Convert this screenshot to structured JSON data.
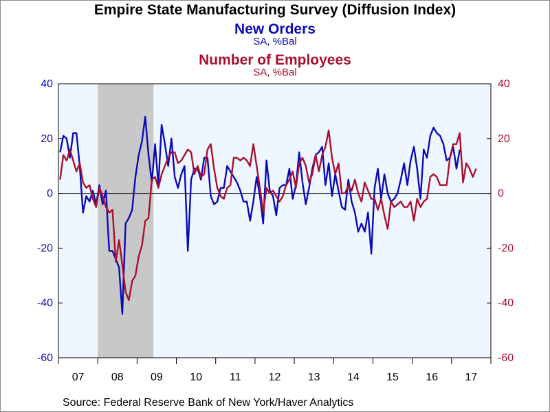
{
  "source": "Source:  Federal Reserve Bank of New York/Haver Analytics",
  "chart_data": {
    "type": "line",
    "title": "Empire State Manufacturing Survey (Diffusion Index)",
    "ylim": [
      -60,
      40
    ],
    "y_ticks": [
      -60,
      -40,
      -20,
      0,
      20,
      40
    ],
    "x_start": "2007-01",
    "x_end": "2018-01",
    "x_tick_labels": [
      "07",
      "08",
      "09",
      "10",
      "11",
      "12",
      "13",
      "14",
      "15",
      "16",
      "17"
    ],
    "grid": false,
    "zero_line": true,
    "recession_shading": {
      "start": "2008-01",
      "end": "2009-06",
      "color": "#c8c8c8"
    },
    "plot_background": "#eef6ff",
    "series": [
      {
        "name": "New Orders",
        "unit": "SA, %Bal",
        "axis": "left",
        "color": "#0b0bb5",
        "start": "2007-01",
        "values": [
          15,
          21,
          20,
          13,
          22,
          22,
          10,
          -7,
          -1,
          -3,
          1,
          -4,
          3,
          -4,
          1,
          -21,
          -21,
          -24,
          -27,
          -44,
          -11,
          -9,
          -6,
          6,
          14,
          19,
          28,
          14,
          4,
          18,
          3,
          25,
          18,
          10,
          20,
          6,
          2,
          7,
          10,
          -21,
          5,
          9,
          9,
          5,
          13,
          13,
          -1,
          -4,
          -3,
          2,
          2,
          10,
          8,
          6,
          4,
          1,
          -3,
          -3,
          -10,
          -3,
          6,
          -1,
          -11,
          12,
          1,
          -1,
          -8,
          2,
          3,
          3,
          9,
          -2,
          3,
          15,
          4,
          -4,
          2,
          9,
          14,
          15,
          17,
          3,
          11,
          -1,
          7,
          1,
          -5,
          -6,
          5,
          -3,
          -7,
          -14,
          -11,
          -14,
          -7,
          -22,
          2,
          9,
          -2,
          7,
          0,
          -3,
          -2,
          0,
          5,
          11,
          3,
          12,
          17,
          9,
          -2,
          16,
          13,
          21,
          24,
          22,
          21,
          18,
          12,
          13,
          17,
          9,
          16
        ]
      },
      {
        "name": "Number of Employees",
        "unit": "SA, %Bal",
        "axis": "right",
        "color": "#a8102e",
        "start": "2007-01",
        "values": [
          5,
          14,
          12,
          16,
          12,
          8,
          11,
          4,
          2,
          3,
          -2,
          -5,
          2,
          -1,
          -5,
          -7,
          -6,
          -25,
          -17,
          -26,
          -36,
          -39,
          -32,
          -30,
          -23,
          -19,
          -10,
          -9,
          5,
          6,
          2,
          7,
          10,
          13,
          15,
          15,
          11,
          12,
          14,
          16,
          15,
          7,
          10,
          6,
          7,
          16,
          18,
          9,
          2,
          -1,
          -2,
          2,
          3,
          13,
          13,
          12,
          13,
          12,
          10,
          18,
          10,
          2,
          -7,
          2,
          0,
          1,
          -1,
          -3,
          -1,
          3,
          5,
          8,
          2,
          11,
          13,
          10,
          4,
          7,
          14,
          8,
          14,
          17,
          23,
          13,
          7,
          11,
          0,
          0,
          3,
          1,
          5,
          0,
          -3,
          4,
          1,
          -2,
          -2,
          -6,
          -2,
          -8,
          -13,
          -3,
          -5,
          -4,
          -3,
          -5,
          -5,
          -3,
          -10,
          -2,
          -5,
          -3,
          -2,
          6,
          7,
          6,
          3,
          3,
          3,
          13,
          18,
          18,
          22,
          4,
          11,
          9,
          6,
          9
        ]
      }
    ]
  }
}
